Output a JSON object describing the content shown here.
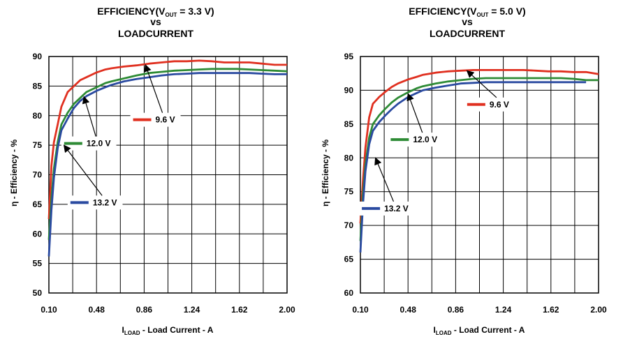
{
  "chart_data": [
    {
      "type": "line",
      "title_prefix": "EFFICIENCY(V",
      "title_sub": "OUT",
      "title_suffix": " = 3.3 V)",
      "title_line2": "vs",
      "title_line3": "LOADCURRENT",
      "ylabel": "η - Efficiency - %",
      "xlabel_main": "I",
      "xlabel_sub": "LOAD",
      "xlabel_rest": " - Load Current - A",
      "xlim": [
        0.1,
        2.0
      ],
      "ylim": [
        50,
        90
      ],
      "xticks": [
        "0.10",
        "0.48",
        "0.86",
        "1.24",
        "1.62",
        "2.00"
      ],
      "yticks": [
        "50",
        "55",
        "60",
        "65",
        "70",
        "75",
        "80",
        "85",
        "90"
      ],
      "grid": true,
      "series": [
        {
          "name": "9.6 V",
          "color": "#e03020",
          "x": [
            0.1,
            0.12,
            0.14,
            0.17,
            0.2,
            0.25,
            0.3,
            0.35,
            0.4,
            0.48,
            0.55,
            0.6,
            0.7,
            0.8,
            0.9,
            1.0,
            1.1,
            1.2,
            1.3,
            1.4,
            1.5,
            1.6,
            1.7,
            1.8,
            1.9,
            2.0
          ],
          "y": [
            62.5,
            71.5,
            75.5,
            78.5,
            81.5,
            84.0,
            85.0,
            86.0,
            86.5,
            87.3,
            87.8,
            88.0,
            88.3,
            88.5,
            88.8,
            89.0,
            89.2,
            89.2,
            89.3,
            89.2,
            89.0,
            89.0,
            89.0,
            88.8,
            88.6,
            88.6
          ]
        },
        {
          "name": "12.0 V",
          "color": "#2e8b35",
          "x": [
            0.1,
            0.12,
            0.14,
            0.17,
            0.2,
            0.25,
            0.3,
            0.35,
            0.4,
            0.48,
            0.55,
            0.6,
            0.7,
            0.8,
            0.9,
            1.0,
            1.1,
            1.2,
            1.3,
            1.4,
            1.5,
            1.6,
            1.7,
            1.8,
            1.9,
            2.0
          ],
          "y": [
            59.0,
            66.0,
            71.0,
            75.5,
            78.5,
            80.5,
            82.0,
            83.0,
            84.0,
            84.8,
            85.5,
            85.8,
            86.3,
            86.8,
            87.2,
            87.4,
            87.6,
            87.7,
            87.8,
            87.9,
            87.9,
            87.9,
            87.8,
            87.7,
            87.6,
            87.5
          ]
        },
        {
          "name": "13.2 V",
          "color": "#2a4aa0",
          "x": [
            0.1,
            0.12,
            0.14,
            0.17,
            0.2,
            0.25,
            0.3,
            0.35,
            0.4,
            0.48,
            0.55,
            0.6,
            0.7,
            0.8,
            0.9,
            1.0,
            1.1,
            1.2,
            1.3,
            1.4,
            1.5,
            1.6,
            1.7,
            1.8,
            1.9,
            2.0
          ],
          "y": [
            56.2,
            64.0,
            69.5,
            74.5,
            77.5,
            79.5,
            81.3,
            82.5,
            83.3,
            84.2,
            84.8,
            85.2,
            85.8,
            86.2,
            86.5,
            86.8,
            87.0,
            87.1,
            87.2,
            87.2,
            87.2,
            87.2,
            87.2,
            87.1,
            87.0,
            87.0
          ]
        }
      ],
      "labels": [
        {
          "text": "9.6 V",
          "series": 0,
          "legend_x": 0.95,
          "legend_y": 79.3,
          "arrow_to": [
            0.87,
            88.6
          ]
        },
        {
          "text": "12.0 V",
          "series": 1,
          "legend_x": 0.4,
          "legend_y": 75.3,
          "arrow_to": [
            0.38,
            83.2
          ]
        },
        {
          "text": "13.2 V",
          "series": 2,
          "legend_x": 0.45,
          "legend_y": 65.3,
          "arrow_to": [
            0.22,
            75.0
          ]
        }
      ]
    },
    {
      "type": "line",
      "title_prefix": "EFFICIENCY(V",
      "title_sub": "OUT",
      "title_suffix": " = 5.0 V)",
      "title_line2": "vs",
      "title_line3": "LOADCURRENT",
      "ylabel": "η - Efficiency - %",
      "xlabel_main": "I",
      "xlabel_sub": "LOAD",
      "xlabel_rest": " - Load Current - A",
      "xlim": [
        0.1,
        2.0
      ],
      "ylim": [
        60,
        95
      ],
      "xticks": [
        "0.10",
        "0.48",
        "0.86",
        "1.24",
        "1.62",
        "2.00"
      ],
      "yticks": [
        "60",
        "65",
        "70",
        "75",
        "80",
        "85",
        "90",
        "95"
      ],
      "grid": true,
      "series": [
        {
          "name": "9.6 V",
          "color": "#e03020",
          "x": [
            0.1,
            0.12,
            0.14,
            0.17,
            0.2,
            0.25,
            0.3,
            0.35,
            0.4,
            0.48,
            0.55,
            0.6,
            0.7,
            0.8,
            0.9,
            1.0,
            1.1,
            1.2,
            1.3,
            1.4,
            1.5,
            1.6,
            1.7,
            1.8,
            1.9,
            2.0
          ],
          "y": [
            70.3,
            76.5,
            81.5,
            86.0,
            88.0,
            89.0,
            89.8,
            90.5,
            91.0,
            91.6,
            92.0,
            92.3,
            92.6,
            92.8,
            92.9,
            93.0,
            93.0,
            93.0,
            93.0,
            93.0,
            92.9,
            92.8,
            92.8,
            92.7,
            92.7,
            92.4
          ]
        },
        {
          "name": "12.0 V",
          "color": "#2e8b35",
          "x": [
            0.1,
            0.12,
            0.14,
            0.17,
            0.2,
            0.25,
            0.3,
            0.35,
            0.4,
            0.48,
            0.55,
            0.6,
            0.7,
            0.8,
            0.9,
            1.0,
            1.1,
            1.2,
            1.3,
            1.4,
            1.5,
            1.6,
            1.7,
            1.8,
            1.9,
            2.0
          ],
          "y": [
            67.7,
            74.5,
            79.0,
            83.0,
            85.0,
            86.3,
            87.3,
            88.2,
            88.9,
            89.7,
            90.3,
            90.6,
            91.0,
            91.3,
            91.5,
            91.7,
            91.8,
            91.8,
            91.8,
            91.8,
            91.8,
            91.8,
            91.8,
            91.7,
            91.5,
            91.5
          ]
        },
        {
          "name": "13.2 V",
          "color": "#2a4aa0",
          "x": [
            0.1,
            0.12,
            0.14,
            0.17,
            0.2,
            0.25,
            0.3,
            0.35,
            0.4,
            0.48,
            0.55,
            0.6,
            0.7,
            0.8,
            0.9,
            1.0,
            1.1,
            1.2,
            1.3,
            1.4,
            1.5,
            1.6,
            1.7,
            1.8,
            1.9
          ],
          "y": [
            66.0,
            73.0,
            78.0,
            82.0,
            84.0,
            85.3,
            86.3,
            87.2,
            88.0,
            89.0,
            89.6,
            90.0,
            90.4,
            90.7,
            91.0,
            91.1,
            91.2,
            91.2,
            91.2,
            91.2,
            91.2,
            91.2,
            91.2,
            91.2,
            91.2
          ]
        }
      ],
      "labels": [
        {
          "text": "9.6 V",
          "series": 0,
          "legend_x": 1.13,
          "legend_y": 87.9,
          "arrow_to": [
            0.95,
            92.9
          ]
        },
        {
          "text": "12.0 V",
          "series": 1,
          "legend_x": 0.52,
          "legend_y": 82.7,
          "arrow_to": [
            0.48,
            89.5
          ]
        },
        {
          "text": "13.2 V",
          "series": 2,
          "legend_x": 0.29,
          "legend_y": 72.5,
          "arrow_to": [
            0.22,
            80.0
          ]
        }
      ]
    }
  ]
}
